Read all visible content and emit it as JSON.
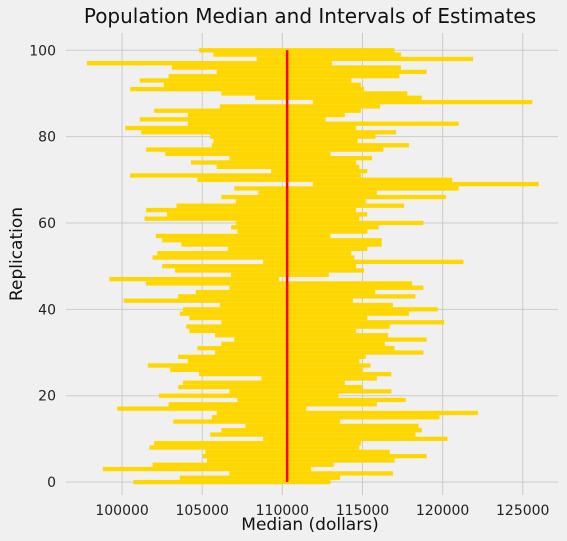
{
  "chart_data": {
    "type": "bar",
    "orientation": "horizontal-intervals",
    "title": "Population Median and Intervals of Estimates",
    "xlabel": "Median (dollars)",
    "ylabel": "Replication",
    "xlim": [
      96500,
      127200
    ],
    "ylim": [
      -3,
      104
    ],
    "xticks": [
      "100000",
      "105000",
      "110000",
      "115000",
      "120000",
      "125000"
    ],
    "yticks": [
      "0",
      "20",
      "40",
      "60",
      "80",
      "100"
    ],
    "grid": true,
    "population_median": 110300,
    "colors": {
      "interval": "#ffd700",
      "median_line": "#ff0000",
      "background": "#f0f0f0",
      "grid": "#cbcbcb"
    },
    "intervals": [
      [
        100700,
        113000
      ],
      [
        103600,
        113600
      ],
      [
        106700,
        116900
      ],
      [
        98800,
        111800
      ],
      [
        101900,
        113200
      ],
      [
        105300,
        117000
      ],
      [
        105000,
        119000
      ],
      [
        105200,
        116700
      ],
      [
        101700,
        114800
      ],
      [
        102000,
        114900
      ],
      [
        108800,
        120300
      ],
      [
        105500,
        118300
      ],
      [
        106200,
        118700
      ],
      [
        107700,
        118500
      ],
      [
        103200,
        113600
      ],
      [
        105600,
        119800
      ],
      [
        105900,
        122200
      ],
      [
        99700,
        111500
      ],
      [
        102900,
        115900
      ],
      [
        107200,
        117700
      ],
      [
        102300,
        113500
      ],
      [
        106700,
        116800
      ],
      [
        103500,
        115000
      ],
      [
        103800,
        113900
      ],
      [
        108700,
        115900
      ],
      [
        104800,
        116800
      ],
      [
        103000,
        115000
      ],
      [
        101600,
        115500
      ],
      [
        104100,
        114800
      ],
      [
        103500,
        115200
      ],
      [
        105800,
        118800
      ],
      [
        104700,
        117000
      ],
      [
        106200,
        116400
      ],
      [
        107000,
        119000
      ],
      [
        105800,
        116600
      ],
      [
        104200,
        114600
      ],
      [
        104000,
        116700
      ],
      [
        106200,
        120100
      ],
      [
        104200,
        115300
      ],
      [
        103600,
        117900
      ],
      [
        103800,
        119700
      ],
      [
        106100,
        116900
      ],
      [
        100100,
        114400
      ],
      [
        103500,
        118300
      ],
      [
        104600,
        115800
      ],
      [
        106700,
        118800
      ],
      [
        101500,
        118100
      ],
      [
        99200,
        109800
      ],
      [
        106800,
        112900
      ],
      [
        103300,
        115100
      ],
      [
        102500,
        114600
      ],
      [
        108800,
        121300
      ],
      [
        101900,
        114500
      ],
      [
        102200,
        114300
      ],
      [
        106600,
        115300
      ],
      [
        103700,
        116200
      ],
      [
        102500,
        116200
      ],
      [
        102100,
        113000
      ],
      [
        107200,
        115300
      ],
      [
        106800,
        116000
      ],
      [
        107100,
        118800
      ],
      [
        101400,
        114800
      ],
      [
        102800,
        115300
      ],
      [
        101500,
        114600
      ],
      [
        103400,
        117600
      ],
      [
        107100,
        115200
      ],
      [
        106200,
        120200
      ],
      [
        108500,
        115900
      ],
      [
        107000,
        121000
      ],
      [
        111900,
        126000
      ],
      [
        104700,
        120600
      ],
      [
        100500,
        114900
      ],
      [
        109300,
        115300
      ],
      [
        105900,
        114800
      ],
      [
        104300,
        114600
      ],
      [
        106700,
        115600
      ],
      [
        102700,
        113000
      ],
      [
        101500,
        116300
      ],
      [
        105600,
        117900
      ],
      [
        105700,
        114700
      ],
      [
        105500,
        115800
      ],
      [
        101200,
        117100
      ],
      [
        100200,
        114600
      ],
      [
        104100,
        121000
      ],
      [
        101100,
        112700
      ],
      [
        104100,
        113900
      ],
      [
        102000,
        114900
      ],
      [
        106100,
        116100
      ],
      [
        111900,
        125600
      ],
      [
        108300,
        118700
      ],
      [
        106200,
        117800
      ],
      [
        100500,
        115100
      ],
      [
        102600,
        114900
      ],
      [
        101100,
        114300
      ],
      [
        102900,
        117300
      ],
      [
        105900,
        119000
      ],
      [
        103100,
        117400
      ],
      [
        97800,
        113100
      ],
      [
        108400,
        121900
      ],
      [
        105700,
        117400
      ],
      [
        104800,
        117000
      ]
    ]
  }
}
